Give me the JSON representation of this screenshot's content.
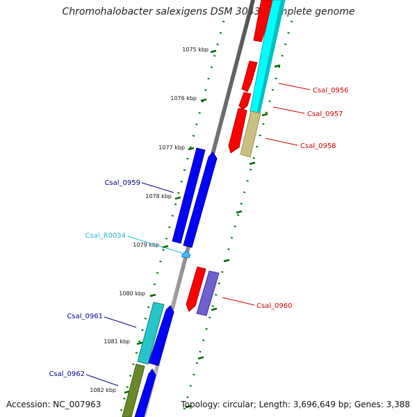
{
  "title": "Chromohalobacter salexigens DSM 3043, complete genome",
  "accession": "Accession: NC_007963",
  "topology": "Topology: circular; Length: 3,696,649 bp; Genes: 3,388",
  "scale_labels": [
    "1075 kbp",
    "1076 kbp",
    "1077 kbp",
    "1078 kbp",
    "1079 kbp",
    "1080 kbp",
    "1081 kbp",
    "1082 kbp"
  ],
  "genes": [
    {
      "name": "Csal_0956",
      "color": "#d00000"
    },
    {
      "name": "Csal_0957",
      "color": "#d00000"
    },
    {
      "name": "Csal_0958",
      "color": "#d00000"
    },
    {
      "name": "Csal_0959",
      "color": "#00008b"
    },
    {
      "name": "Csal_R0034",
      "color": "#1eb8d0"
    },
    {
      "name": "Csal_0960",
      "color": "#d00000"
    },
    {
      "name": "Csal_0961",
      "color": "#00008b"
    },
    {
      "name": "Csal_0962",
      "color": "#00008b"
    }
  ],
  "colors": {
    "forward_cds": "#ff0000",
    "reverse_cds": "#0000ff",
    "cyan_feature": "#00ffff",
    "teal_feature": "#27c6c6",
    "khaki_feature": "#c8c080",
    "purple_feature": "#7060d0",
    "olive_feature": "#6a8a2a",
    "rna_feature": "#40b8ff",
    "tick_color": "#008000",
    "backbone": "#808080"
  }
}
